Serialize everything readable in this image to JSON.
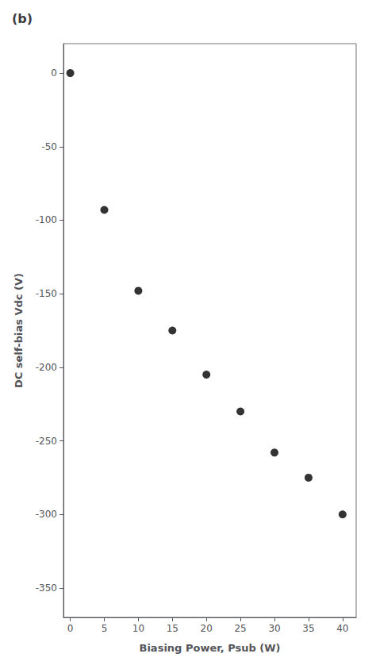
{
  "chart_data": {
    "type": "scatter",
    "title": "(b)",
    "x": [
      0,
      5,
      10,
      15,
      20,
      25,
      30,
      35,
      40
    ],
    "values": [
      0,
      -93,
      -148,
      -175,
      -205,
      -230,
      -258,
      -275,
      -300
    ],
    "xlabel": "Biasing Power, Psub (W)",
    "ylabel": "DC self-bias Vdc (V)",
    "xlim": [
      -1,
      42
    ],
    "ylim": [
      -370,
      20
    ],
    "xticks": [
      0,
      5,
      10,
      15,
      20,
      25,
      30,
      35,
      40
    ],
    "yticks": [
      -350,
      -300,
      -250,
      -200,
      -150,
      -100,
      -50,
      0
    ],
    "color": "black",
    "marker": "circle",
    "grid": false
  }
}
